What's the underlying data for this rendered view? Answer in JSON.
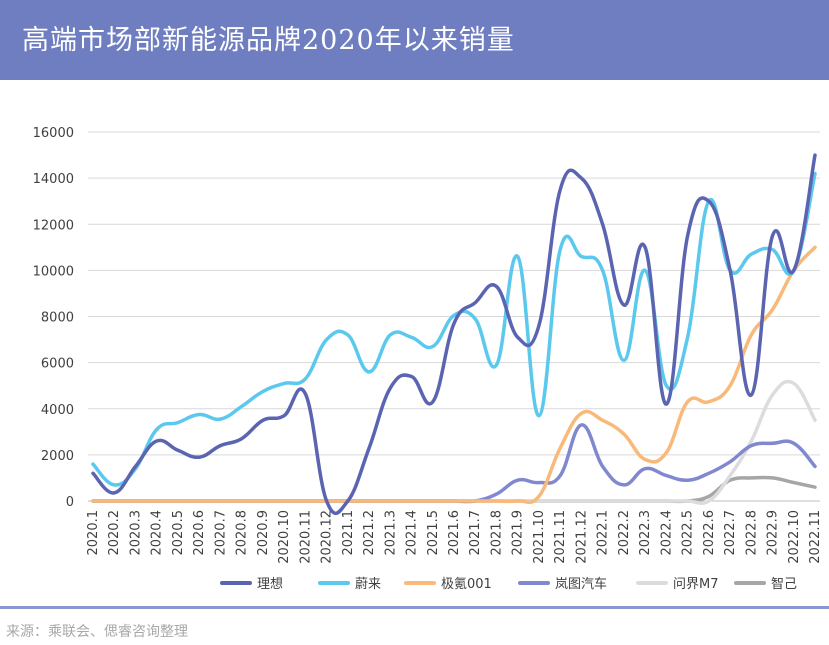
{
  "header": {
    "title": "高端市场部新能源品牌2020年以来销量"
  },
  "footer": {
    "source": "来源：乘联会、偲睿咨询整理"
  },
  "colors": {
    "header_bg": "#6e7ec0",
    "divider": "#8a96cf",
    "grid": "#d9d9d9"
  },
  "chart_data": {
    "type": "line",
    "title": "",
    "xlabel": "",
    "ylabel": "",
    "ylim": [
      0,
      16000
    ],
    "yticks": [
      0,
      2000,
      4000,
      6000,
      8000,
      10000,
      12000,
      14000,
      16000
    ],
    "grid": true,
    "legend_position": "bottom",
    "categories": [
      "2020.1",
      "2020.2",
      "2020.3",
      "2020.4",
      "2020.5",
      "2020.6",
      "2020.7",
      "2020.8",
      "2020.9",
      "2020.10",
      "2020.11",
      "2020.12",
      "2021.1",
      "2021.2",
      "2021.3",
      "2021.4",
      "2021.5",
      "2021.6",
      "2021.7",
      "2021.8",
      "2021.9",
      "2021.10",
      "2021.11",
      "2021.12",
      "2022.1",
      "2022.2",
      "2022.3",
      "2022.4",
      "2022.5",
      "2022.6",
      "2022.7",
      "2022.8",
      "2022.9",
      "2022.10",
      "2022.11"
    ],
    "series": [
      {
        "name": "理想",
        "color": "#5a64b0",
        "values": [
          1200,
          350,
          1500,
          2600,
          2200,
          1900,
          2400,
          2700,
          3500,
          3700,
          4650,
          0,
          0,
          2300,
          4900,
          5400,
          4300,
          7700,
          8600,
          9300,
          7100,
          7600,
          13500,
          14000,
          12000,
          8500,
          11000,
          4200,
          11500,
          13000,
          10000,
          4600,
          11500,
          10000,
          15000
        ]
      },
      {
        "name": "蔚来",
        "color": "#5bc8ee",
        "values": [
          1600,
          700,
          1400,
          3100,
          3400,
          3750,
          3550,
          4100,
          4750,
          5100,
          5300,
          7000,
          7200,
          5600,
          7200,
          7100,
          6700,
          8050,
          7900,
          5900,
          10600,
          3700,
          10900,
          10600,
          10000,
          6100,
          10000,
          5000,
          7100,
          13000,
          10000,
          10700,
          10900,
          10000,
          14200
        ]
      },
      {
        "name": "极氪001",
        "color": "#f8b97a",
        "values": [
          0,
          0,
          0,
          0,
          0,
          0,
          0,
          0,
          0,
          0,
          0,
          0,
          0,
          0,
          0,
          0,
          0,
          0,
          0,
          0,
          0,
          200,
          2300,
          3800,
          3500,
          2900,
          1800,
          2100,
          4300,
          4300,
          5000,
          7200,
          8300,
          10000,
          11000
        ]
      },
      {
        "name": "岚图汽车",
        "color": "#8088d0",
        "values": [
          0,
          0,
          0,
          0,
          0,
          0,
          0,
          0,
          0,
          0,
          0,
          0,
          0,
          0,
          0,
          0,
          0,
          0,
          0,
          300,
          900,
          800,
          1100,
          3300,
          1500,
          700,
          1400,
          1100,
          900,
          1200,
          1700,
          2400,
          2500,
          2500,
          1500
        ]
      },
      {
        "name": "问界M7",
        "color": "#dcdcdc",
        "values": [
          0,
          0,
          0,
          0,
          0,
          0,
          0,
          0,
          0,
          0,
          0,
          0,
          0,
          0,
          0,
          0,
          0,
          0,
          0,
          0,
          0,
          0,
          0,
          0,
          0,
          0,
          0,
          0,
          0,
          0,
          1100,
          2600,
          4600,
          5100,
          3500
        ]
      },
      {
        "name": "智己",
        "color": "#a6a6a6",
        "values": [
          0,
          0,
          0,
          0,
          0,
          0,
          0,
          0,
          0,
          0,
          0,
          0,
          0,
          0,
          0,
          0,
          0,
          0,
          0,
          0,
          0,
          0,
          0,
          0,
          0,
          0,
          0,
          0,
          0,
          200,
          900,
          1000,
          1000,
          800,
          600
        ]
      }
    ]
  }
}
